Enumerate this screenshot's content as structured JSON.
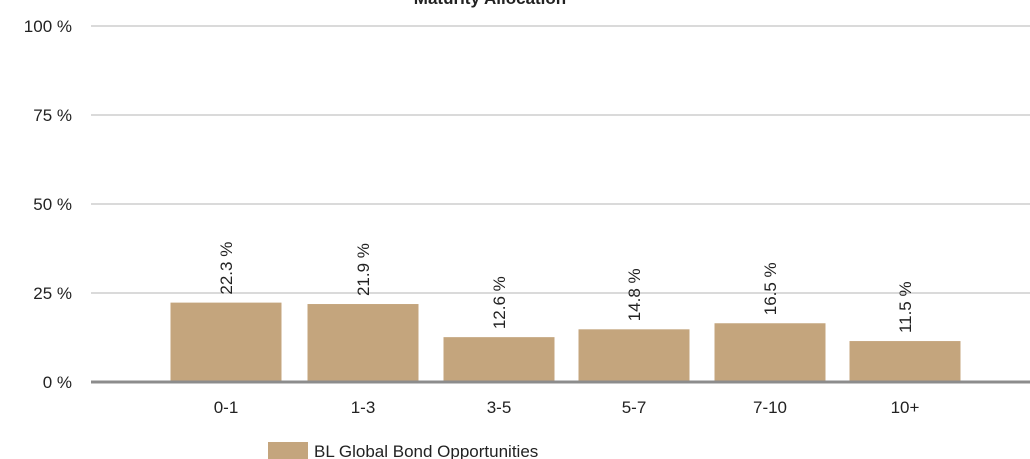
{
  "chart_data": {
    "type": "bar",
    "title": "Maturity Allocation",
    "categories": [
      "0-1",
      "1-3",
      "3-5",
      "5-7",
      "7-10",
      "10+"
    ],
    "series": [
      {
        "name": "BL Global Bond Opportunities",
        "values": [
          22.3,
          21.9,
          12.6,
          14.8,
          16.5,
          11.5
        ]
      }
    ],
    "value_labels": [
      "22.3 %",
      "21.9 %",
      "12.6 %",
      "14.8 %",
      "16.5 %",
      "11.5 %"
    ],
    "ylim": [
      0,
      100
    ],
    "yticks": [
      0,
      25,
      50,
      75,
      100
    ],
    "ytick_labels": [
      "0 %",
      "25 %",
      "50 %",
      "75 %",
      "100 %"
    ],
    "xlabel": "",
    "ylabel": "",
    "grid": true,
    "legend_position": "bottom",
    "colors": {
      "bar": "#C4A57D",
      "grid": "#B5B5B5",
      "axis": "#8C8C8C"
    }
  }
}
